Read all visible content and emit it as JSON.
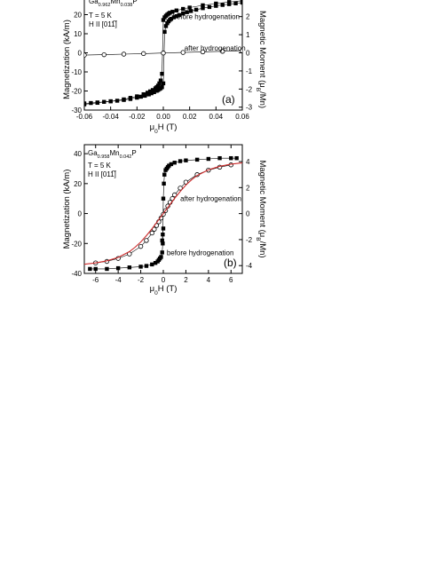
{
  "chart_data": [
    {
      "type": "scatter",
      "panel_label": "(a)",
      "sample_label": "Ga0.962Mn0.038P",
      "conditions": [
        "T = 5 K",
        "H II [011̅]"
      ],
      "xlabel": "μ0H (T)",
      "ylabel": "Magnetization (kA/m)",
      "y2label": "Magnetic Moment (μB/Mn)",
      "xlim": [
        -0.06,
        0.06
      ],
      "ylim": [
        -30,
        30
      ],
      "y2lim": [
        -3.16,
        3.16
      ],
      "xticks": [
        -0.06,
        -0.04,
        -0.02,
        0.0,
        0.02,
        0.04,
        0.06
      ],
      "xtick_labels": [
        "-0.06",
        "-0.04",
        "-0.02",
        "0.00",
        "0.02",
        "0.04",
        "0.06"
      ],
      "yticks": [
        -30,
        -20,
        -10,
        0,
        10,
        20
      ],
      "ytick_labels": [
        "-30",
        "-20",
        "-10",
        "0",
        "10",
        "20"
      ],
      "y2ticks": [
        -3,
        -2,
        -1,
        0,
        1,
        2
      ],
      "y2tick_labels": [
        "-3",
        "-2",
        "-1",
        "0",
        "1",
        "2"
      ],
      "annotations": [
        {
          "text": "before hydrogenation",
          "x": 0.007,
          "y": 19
        },
        {
          "text": "after hydrogenation",
          "x": 0.016,
          "y": 2.5
        }
      ],
      "series": [
        {
          "label": "before hydrogenation",
          "marker": "filled-square",
          "color": "#000000",
          "x": [
            -0.06,
            -0.055,
            -0.05,
            -0.045,
            -0.04,
            -0.035,
            -0.03,
            -0.025,
            -0.02,
            -0.017,
            -0.014,
            -0.011,
            -0.009,
            -0.007,
            -0.005,
            -0.004,
            -0.003,
            -0.002,
            -0.001,
            0.0,
            0.001,
            0.002,
            0.003,
            0.004,
            0.005,
            0.006,
            0.008,
            0.01,
            0.012,
            0.015,
            0.018,
            0.021,
            0.025,
            0.03,
            0.035,
            0.04,
            0.045,
            0.05,
            0.055,
            0.06
          ],
          "y": [
            -26.5,
            -26.3,
            -26.0,
            -25.7,
            -25.4,
            -25.1,
            -24.7,
            -24.2,
            -23.5,
            -23.0,
            -22.5,
            -21.8,
            -21.2,
            -20.6,
            -19.9,
            -19.5,
            -19.0,
            -18.6,
            -18.0,
            -16.0,
            11.0,
            14.0,
            15.5,
            16.5,
            17.3,
            17.8,
            18.6,
            19.2,
            19.8,
            20.6,
            21.3,
            21.9,
            22.6,
            23.4,
            24.0,
            24.6,
            25.1,
            25.5,
            25.9,
            26.3
          ]
        },
        {
          "label": "before hydrogenation (branch)",
          "marker": "filled-square",
          "color": "#000000",
          "x": [
            0.06,
            0.05,
            0.04,
            0.03,
            0.02,
            0.015,
            0.01,
            0.007,
            0.005,
            0.004,
            0.003,
            0.002,
            0.001,
            0.0,
            -0.001,
            -0.002,
            -0.003,
            -0.004,
            -0.005,
            -0.006,
            -0.008,
            -0.01,
            -0.012,
            -0.015,
            -0.02,
            -0.025,
            -0.03,
            -0.04,
            -0.05,
            -0.06
          ],
          "y": [
            27.3,
            26.6,
            25.8,
            24.9,
            23.7,
            23.0,
            22.2,
            21.5,
            21.0,
            20.5,
            20.0,
            19.4,
            18.6,
            17.2,
            -11.0,
            -14.5,
            -16.0,
            -17.2,
            -18.0,
            -18.6,
            -19.5,
            -20.2,
            -20.9,
            -21.7,
            -22.8,
            -23.6,
            -24.4,
            -25.4,
            -26.2,
            -27.0
          ]
        },
        {
          "label": "after hydrogenation",
          "marker": "open-circle",
          "color": "#000000",
          "x": [
            -0.06,
            -0.045,
            -0.03,
            -0.015,
            0.0,
            0.015,
            0.03,
            0.045,
            0.06
          ],
          "y": [
            -1.2,
            -1.0,
            -0.7,
            -0.4,
            -0.1,
            0.2,
            0.5,
            0.8,
            1.1
          ]
        }
      ]
    },
    {
      "type": "scatter",
      "panel_label": "(b)",
      "sample_label": "Ga0.958Mn0.042P",
      "conditions": [
        "T = 5 K",
        "H II [011̅]"
      ],
      "xlabel": "μ0H (T)",
      "ylabel": "Magnetization (kA/m)",
      "y2label": "Magnetic Moment (μB/Mn)",
      "xlim": [
        -7,
        7
      ],
      "ylim": [
        -40,
        46
      ],
      "y2lim": [
        -4.6,
        5.3
      ],
      "xticks": [
        -6,
        -4,
        -2,
        0,
        2,
        4,
        6
      ],
      "xtick_labels": [
        "-6",
        "-4",
        "-2",
        "0",
        "2",
        "4",
        "6"
      ],
      "yticks": [
        -40,
        -20,
        0,
        20,
        40
      ],
      "ytick_labels": [
        "-40",
        "-20",
        "0",
        "20",
        "40"
      ],
      "y2ticks": [
        -4,
        -2,
        0,
        2,
        4
      ],
      "y2tick_labels": [
        "-4",
        "-2",
        "0",
        "2",
        "4"
      ],
      "annotations": [
        {
          "text": "after hydrogenation",
          "x": 1.5,
          "y": 10
        },
        {
          "text": "before hydrogenation",
          "x": 0.3,
          "y": -26
        }
      ],
      "series": [
        {
          "label": "before hydrogenation",
          "marker": "filled-square",
          "color": "#000000",
          "x": [
            -6.5,
            -6.0,
            -5.0,
            -4.0,
            -3.0,
            -2.0,
            -1.5,
            -1.0,
            -0.7,
            -0.5,
            -0.4,
            -0.3,
            -0.2,
            -0.1,
            -0.05,
            0.0,
            0.05,
            0.1,
            0.2,
            0.3,
            0.4,
            0.5,
            0.7,
            1.0,
            1.5,
            2.0,
            3.0,
            4.0,
            5.0,
            6.0,
            6.5
          ],
          "y": [
            -37,
            -37,
            -37,
            -36.5,
            -36,
            -35.5,
            -35,
            -34,
            -33,
            -32,
            -31,
            -30,
            -29,
            -26,
            -20,
            10,
            20,
            26,
            29,
            30,
            31,
            32,
            33,
            34,
            35,
            35.5,
            36,
            36.5,
            37,
            37,
            37
          ]
        },
        {
          "label": "before hydrogenation (branch)",
          "marker": "filled-square",
          "color": "#000000",
          "x": [
            0.0,
            -0.05,
            -0.1
          ],
          "y": [
            -10,
            -14,
            -18
          ]
        },
        {
          "label": "after hydrogenation",
          "marker": "open-circle",
          "color": "#000000",
          "x": [
            -6.0,
            -5.0,
            -4.0,
            -3.0,
            -2.0,
            -1.5,
            -1.0,
            -0.8,
            -0.6,
            -0.4,
            -0.2,
            0.0,
            0.2,
            0.4,
            0.6,
            0.8,
            1.0,
            1.5,
            2.0,
            3.0,
            4.0,
            5.0,
            6.0
          ],
          "y": [
            -33.0,
            -32.0,
            -30.0,
            -27.0,
            -22.0,
            -18.0,
            -13.0,
            -10.5,
            -8.0,
            -5.5,
            -3.0,
            -0.5,
            2.0,
            5.0,
            7.5,
            10.0,
            12.5,
            17.0,
            21.0,
            26.0,
            29.0,
            31.0,
            32.5
          ]
        },
        {
          "label": "fit",
          "marker": "line",
          "color": "#cc2a2a",
          "x": [
            -7.0,
            -6.0,
            -5.0,
            -4.0,
            -3.0,
            -2.5,
            -2.0,
            -1.5,
            -1.0,
            -0.5,
            0.0,
            0.5,
            1.0,
            1.5,
            2.0,
            2.5,
            3.0,
            4.0,
            5.0,
            6.0,
            7.0
          ],
          "y": [
            -33.9,
            -33.0,
            -31.6,
            -29.3,
            -25.4,
            -22.5,
            -19.0,
            -14.8,
            -10.1,
            -5.1,
            0.0,
            5.1,
            10.1,
            14.8,
            19.0,
            22.5,
            25.4,
            29.3,
            31.6,
            33.0,
            33.9
          ]
        }
      ]
    }
  ]
}
